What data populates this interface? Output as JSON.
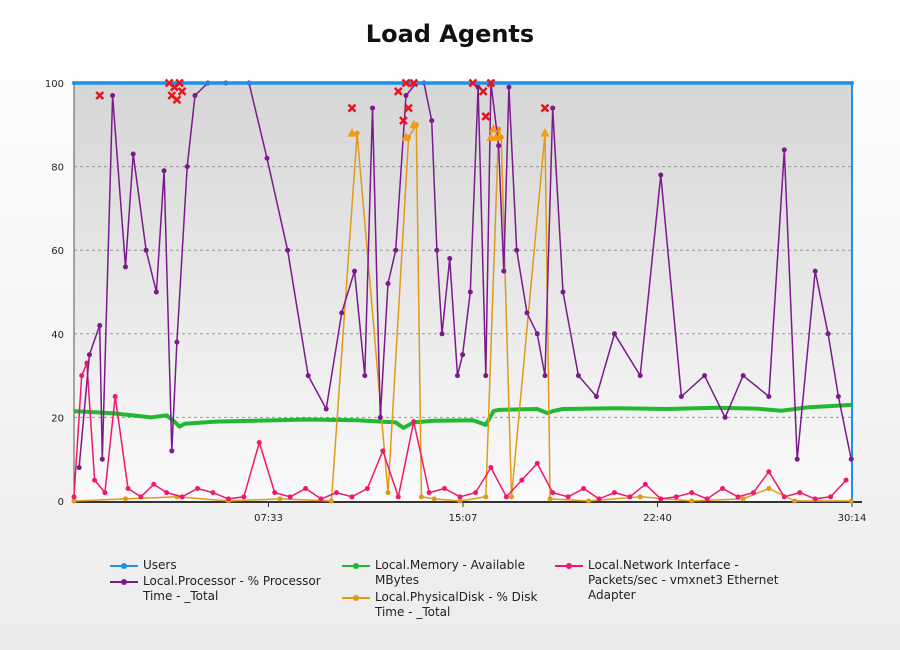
{
  "chart_data": {
    "type": "line",
    "title": "Load Agents",
    "x_tick_labels": [
      "07:33",
      "15:07",
      "22:40",
      "30:14"
    ],
    "ylim": [
      0,
      100
    ],
    "y_ticks": [
      0,
      20,
      40,
      60,
      80,
      100
    ],
    "grid": "horizontal dashed",
    "legend_position": "bottom",
    "colors": {
      "users": "#1e90e6",
      "processor": "#7b1a8c",
      "memory": "#22b832",
      "disk": "#e09a1a",
      "network": "#f0186e",
      "marker_x": "#e8141e",
      "marker_triangle": "#f59a16",
      "plot_bg_top": "#d6d6d6",
      "plot_bg_bottom": "#fafafa"
    },
    "series": [
      {
        "name": "Users",
        "key": "users",
        "x": [
          0,
          30.23
        ],
        "values": [
          100,
          100
        ]
      },
      {
        "name": "Local.Processor - % Processor Time - _Total",
        "key": "processor",
        "x": [
          0.2,
          0.6,
          1.0,
          1.1,
          1.5,
          2.0,
          2.3,
          2.8,
          3.2,
          3.5,
          3.8,
          4.0,
          4.4,
          4.7,
          5.2,
          5.9,
          6.8,
          7.5,
          8.3,
          9.1,
          9.8,
          10.4,
          10.9,
          11.3,
          11.6,
          11.9,
          12.2,
          12.5,
          12.9,
          13.3,
          13.6,
          13.9,
          14.1,
          14.3,
          14.6,
          14.9,
          15.1,
          15.4,
          15.7,
          16.0,
          16.2,
          16.5,
          16.7,
          16.9,
          17.2,
          17.6,
          18.0,
          18.3,
          18.6,
          19.0,
          19.6,
          20.3,
          21.0,
          22.0,
          22.8,
          23.6,
          24.5,
          25.3,
          26.0,
          27.0,
          27.6,
          28.1,
          28.8,
          29.3,
          29.7,
          30.2
        ],
        "values": [
          8,
          35,
          42,
          10,
          97,
          56,
          83,
          60,
          50,
          79,
          12,
          38,
          80,
          97,
          100,
          100,
          100,
          82,
          60,
          30,
          22,
          45,
          55,
          30,
          94,
          20,
          52,
          60,
          97,
          100,
          100,
          91,
          60,
          40,
          58,
          30,
          35,
          50,
          99,
          30,
          100,
          85,
          55,
          99,
          60,
          45,
          40,
          30,
          94,
          50,
          30,
          25,
          40,
          30,
          78,
          25,
          30,
          20,
          30,
          25,
          84,
          10,
          55,
          40,
          25,
          10
        ]
      },
      {
        "name": "Local.Memory - Available MBytes",
        "key": "memory",
        "x": [
          0,
          1.5,
          3.0,
          3.6,
          3.9,
          4.1,
          4.3,
          5.5,
          7.0,
          9.0,
          11.0,
          12.5,
          12.8,
          13.2,
          14.0,
          15.5,
          16.0,
          16.3,
          16.5,
          18.0,
          18.4,
          18.6,
          19.0,
          21.0,
          23.0,
          25.0,
          26.5,
          27.5,
          28.5,
          30.2
        ],
        "values": [
          21.5,
          21.0,
          20.0,
          20.5,
          19.0,
          17.8,
          18.5,
          19.0,
          19.2,
          19.5,
          19.3,
          18.8,
          17.5,
          18.8,
          19.2,
          19.3,
          18.2,
          21.5,
          21.8,
          22.0,
          21.0,
          21.5,
          22.0,
          22.2,
          22.0,
          22.3,
          22.1,
          21.6,
          22.4,
          23.0
        ]
      },
      {
        "name": "Local.PhysicalDisk - % Disk Time - _Total",
        "key": "disk",
        "x": [
          0,
          2.0,
          4.0,
          6.0,
          8.0,
          10.0,
          11.0,
          12.2,
          13.0,
          13.3,
          13.5,
          14.0,
          15.0,
          16.0,
          16.5,
          16.6,
          17.0,
          18.3,
          18.5,
          20.0,
          22.0,
          24.0,
          26.0,
          27.0,
          28.0,
          30.2
        ],
        "values": [
          0,
          0.5,
          1,
          0,
          0.5,
          0,
          88,
          2,
          87,
          90,
          1,
          0.5,
          0,
          1,
          89,
          87,
          1,
          88,
          0.5,
          0,
          1,
          0,
          0.5,
          3,
          0,
          0
        ]
      },
      {
        "name": "Local.Network Interface - Packets/sec - vmxnet3 Ethernet Adapter",
        "key": "network",
        "x": [
          0,
          0.3,
          0.5,
          0.8,
          1.2,
          1.6,
          2.1,
          2.6,
          3.1,
          3.6,
          4.2,
          4.8,
          5.4,
          6.0,
          6.6,
          7.2,
          7.8,
          8.4,
          9.0,
          9.6,
          10.2,
          10.8,
          11.4,
          12.0,
          12.6,
          13.2,
          13.8,
          14.4,
          15.0,
          15.6,
          16.2,
          16.8,
          17.4,
          18.0,
          18.6,
          19.2,
          19.8,
          20.4,
          21.0,
          21.6,
          22.2,
          22.8,
          23.4,
          24.0,
          24.6,
          25.2,
          25.8,
          26.4,
          27.0,
          27.6,
          28.2,
          28.8,
          29.4,
          30.0
        ],
        "values": [
          1,
          30,
          33,
          5,
          2,
          25,
          3,
          1,
          4,
          2,
          1,
          3,
          2,
          0.5,
          1,
          14,
          2,
          1,
          3,
          0.5,
          2,
          1,
          3,
          12,
          1,
          19,
          2,
          3,
          1,
          2,
          8,
          1,
          5,
          9,
          2,
          1,
          3,
          0.5,
          2,
          1,
          4,
          0.5,
          1,
          2,
          0.5,
          3,
          1,
          2,
          7,
          1,
          2,
          0.5,
          1,
          5
        ]
      }
    ],
    "x_markers": [
      [
        1.0,
        97
      ],
      [
        3.7,
        100
      ],
      [
        3.8,
        97
      ],
      [
        3.9,
        99
      ],
      [
        4.0,
        96
      ],
      [
        4.1,
        100
      ],
      [
        4.2,
        98
      ],
      [
        10.8,
        94
      ],
      [
        12.6,
        98
      ],
      [
        12.8,
        91
      ],
      [
        12.9,
        100
      ],
      [
        13.0,
        94
      ],
      [
        13.2,
        100
      ],
      [
        15.5,
        100
      ],
      [
        15.9,
        98
      ],
      [
        16.0,
        92
      ],
      [
        16.2,
        100
      ],
      [
        18.3,
        94
      ]
    ],
    "triangle_markers": [
      [
        10.8,
        88
      ],
      [
        12.9,
        87
      ],
      [
        13.2,
        90
      ],
      [
        16.2,
        87
      ],
      [
        16.3,
        89
      ],
      [
        16.4,
        87
      ],
      [
        18.3,
        88
      ]
    ]
  }
}
